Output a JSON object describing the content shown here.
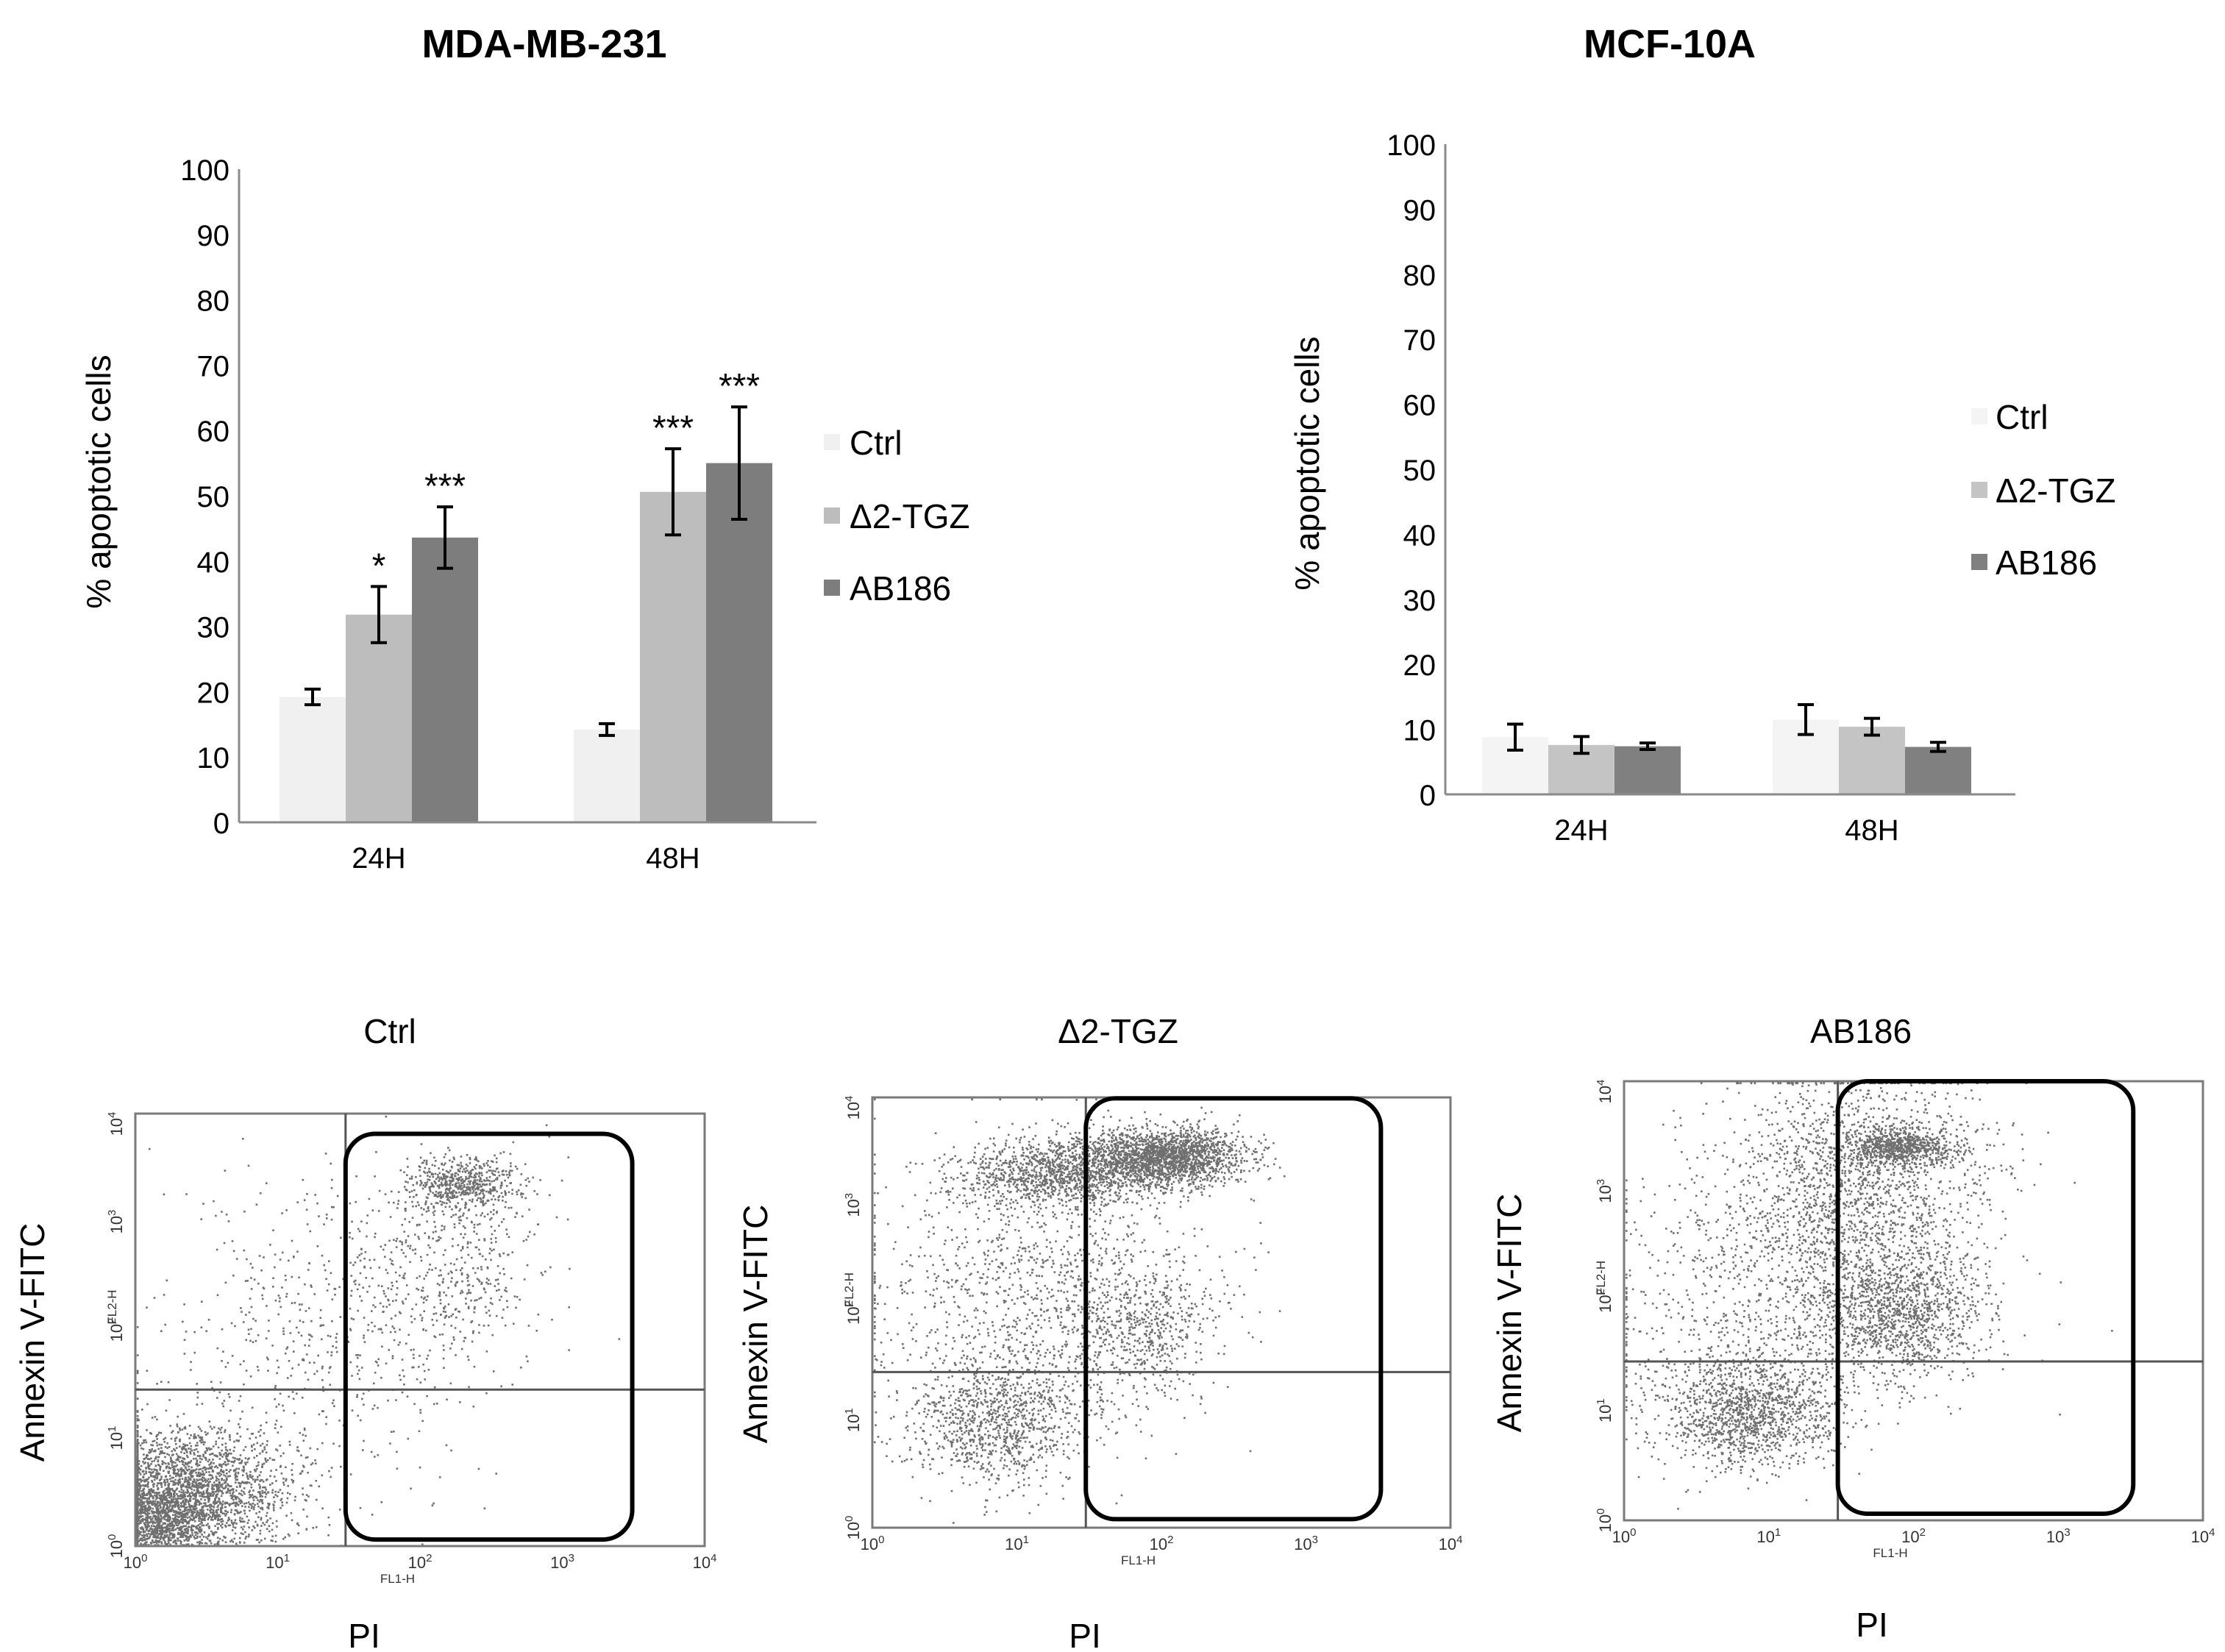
{
  "chart_data": [
    {
      "type": "bar",
      "panel": "top-left",
      "title": "MDA-MB-231",
      "ylabel": "% apoptotic cells",
      "xlabel": "",
      "ylim": [
        0,
        100
      ],
      "yticks": [
        "0",
        "10",
        "20",
        "30",
        "40",
        "50",
        "60",
        "70",
        "80",
        "90",
        "100"
      ],
      "categories": [
        "24H",
        "48H"
      ],
      "legend_position": "right",
      "series": [
        {
          "name": "Ctrl",
          "color": "#f0f0f0",
          "values": [
            19.2,
            14.2
          ],
          "errors": [
            1.2,
            0.9
          ],
          "significance": [
            "",
            ""
          ]
        },
        {
          "name": "Δ2-TGZ",
          "color": "#bdbdbd",
          "values": [
            31.8,
            50.6
          ],
          "errors": [
            4.3,
            6.6
          ],
          "significance": [
            "*",
            "***"
          ]
        },
        {
          "name": "AB186",
          "color": "#7d7d7d",
          "values": [
            43.6,
            55.0
          ],
          "errors": [
            4.7,
            8.6
          ],
          "significance": [
            "***",
            "***"
          ]
        }
      ]
    },
    {
      "type": "bar",
      "panel": "top-right",
      "title": "MCF-10A",
      "ylabel": "% apoptotic cells",
      "xlabel": "",
      "ylim": [
        0,
        100
      ],
      "yticks": [
        "0",
        "10",
        "20",
        "30",
        "40",
        "50",
        "60",
        "70",
        "80",
        "90",
        "100"
      ],
      "categories": [
        "24H",
        "48H"
      ],
      "legend_position": "right",
      "series": [
        {
          "name": "Ctrl",
          "color": "#f4f4f4",
          "values": [
            8.8,
            11.5
          ],
          "errors": [
            2.0,
            2.3
          ],
          "significance": [
            "",
            ""
          ]
        },
        {
          "name": "Δ2-TGZ",
          "color": "#c4c4c4",
          "values": [
            7.6,
            10.4
          ],
          "errors": [
            1.3,
            1.3
          ],
          "significance": [
            "",
            ""
          ]
        },
        {
          "name": "AB186",
          "color": "#808080",
          "values": [
            7.4,
            7.3
          ],
          "errors": [
            0.5,
            0.7
          ],
          "significance": [
            "",
            ""
          ]
        }
      ]
    },
    {
      "type": "scatter",
      "panel": "bottom-left",
      "title": "Ctrl",
      "xlabel": "PI",
      "ylabel": "Annexin V-FITC",
      "xlabel_small": "FL1-H",
      "ylabel_small": "FL2-H",
      "xscale": "log",
      "yscale": "log",
      "xlim": [
        1,
        10000
      ],
      "ylim": [
        1,
        10000
      ],
      "x_ticks": [
        {
          "base": "10",
          "exp": "0"
        },
        {
          "base": "10",
          "exp": "1"
        },
        {
          "base": "10",
          "exp": "2"
        },
        {
          "base": "10",
          "exp": "3"
        },
        {
          "base": "10",
          "exp": "4"
        }
      ],
      "y_ticks": [
        {
          "base": "10",
          "exp": "0"
        },
        {
          "base": "10",
          "exp": "1"
        },
        {
          "base": "10",
          "exp": "2"
        },
        {
          "base": "10",
          "exp": "3"
        },
        {
          "base": "10",
          "exp": "4"
        }
      ],
      "quadrant_threshold": {
        "x": 30,
        "y": 28
      },
      "gate": {
        "x": [
          30,
          3100
        ],
        "y": [
          1.15,
          6500
        ]
      },
      "clusters": [
        {
          "cx": 0.35,
          "cy": 0.5,
          "sx": 0.36,
          "sy": 0.3,
          "n": 2600
        },
        {
          "cx": 0.12,
          "cy": 0.22,
          "sx": 0.18,
          "sy": 0.18,
          "n": 1000
        },
        {
          "cx": 2.3,
          "cy": 3.35,
          "sx": 0.2,
          "sy": 0.13,
          "n": 600
        },
        {
          "cx": 2.2,
          "cy": 2.6,
          "sx": 0.35,
          "sy": 0.45,
          "n": 450
        },
        {
          "cx": 1.3,
          "cy": 2.0,
          "sx": 0.6,
          "sy": 0.7,
          "n": 550
        }
      ]
    },
    {
      "type": "scatter",
      "panel": "bottom-middle",
      "title": "Δ2-TGZ",
      "xlabel": "PI",
      "ylabel": "Annexin V-FITC",
      "xlabel_small": "FL1-H",
      "ylabel_small": "FL2-H",
      "xscale": "log",
      "yscale": "log",
      "xlim": [
        1,
        10000
      ],
      "ylim": [
        1,
        10000
      ],
      "x_ticks": [
        {
          "base": "10",
          "exp": "0"
        },
        {
          "base": "10",
          "exp": "1"
        },
        {
          "base": "10",
          "exp": "2"
        },
        {
          "base": "10",
          "exp": "3"
        },
        {
          "base": "10",
          "exp": "4"
        }
      ],
      "y_ticks": [
        {
          "base": "10",
          "exp": "0"
        },
        {
          "base": "10",
          "exp": "1"
        },
        {
          "base": "10",
          "exp": "2"
        },
        {
          "base": "10",
          "exp": "3"
        },
        {
          "base": "10",
          "exp": "4"
        }
      ],
      "quadrant_threshold": {
        "x": 30,
        "y": 28
      },
      "gate": {
        "x": [
          30,
          3300
        ],
        "y": [
          1.2,
          9800
        ]
      },
      "clusters": [
        {
          "cx": 2.0,
          "cy": 3.45,
          "sx": 0.28,
          "sy": 0.13,
          "n": 2000
        },
        {
          "cx": 1.3,
          "cy": 3.3,
          "sx": 0.35,
          "sy": 0.16,
          "n": 1200
        },
        {
          "cx": 0.85,
          "cy": 1.0,
          "sx": 0.3,
          "sy": 0.3,
          "n": 1000
        },
        {
          "cx": 1.8,
          "cy": 1.9,
          "sx": 0.3,
          "sy": 0.35,
          "n": 600
        },
        {
          "cx": 1.1,
          "cy": 2.2,
          "sx": 0.6,
          "sy": 0.7,
          "n": 1100
        }
      ]
    },
    {
      "type": "scatter",
      "panel": "bottom-right",
      "title": "AB186",
      "xlabel": "PI",
      "ylabel": "Annexin V-FITC",
      "xlabel_small": "FL1-H",
      "ylabel_small": "FL2-H",
      "xscale": "log",
      "yscale": "log",
      "xlim": [
        1,
        10000
      ],
      "ylim": [
        1,
        10000
      ],
      "x_ticks": [
        {
          "base": "10",
          "exp": "0"
        },
        {
          "base": "10",
          "exp": "1"
        },
        {
          "base": "10",
          "exp": "2"
        },
        {
          "base": "10",
          "exp": "3"
        },
        {
          "base": "10",
          "exp": "4"
        }
      ],
      "y_ticks": [
        {
          "base": "10",
          "exp": "0"
        },
        {
          "base": "10",
          "exp": "1"
        },
        {
          "base": "10",
          "exp": "2"
        },
        {
          "base": "10",
          "exp": "3"
        },
        {
          "base": "10",
          "exp": "4"
        }
      ],
      "quadrant_threshold": {
        "x": 30,
        "y": 28
      },
      "gate": {
        "x": [
          30,
          3300
        ],
        "y": [
          1.15,
          10000
        ]
      },
      "clusters": [
        {
          "cx": 0.85,
          "cy": 1.0,
          "sx": 0.3,
          "sy": 0.25,
          "n": 1300
        },
        {
          "cx": 1.85,
          "cy": 1.9,
          "sx": 0.3,
          "sy": 0.3,
          "n": 1300
        },
        {
          "cx": 1.9,
          "cy": 3.4,
          "sx": 0.18,
          "sy": 0.08,
          "n": 700
        },
        {
          "cx": 1.6,
          "cy": 3.1,
          "sx": 0.45,
          "sy": 0.5,
          "n": 1700
        },
        {
          "cx": 1.0,
          "cy": 2.0,
          "sx": 0.6,
          "sy": 0.65,
          "n": 900
        }
      ]
    }
  ]
}
